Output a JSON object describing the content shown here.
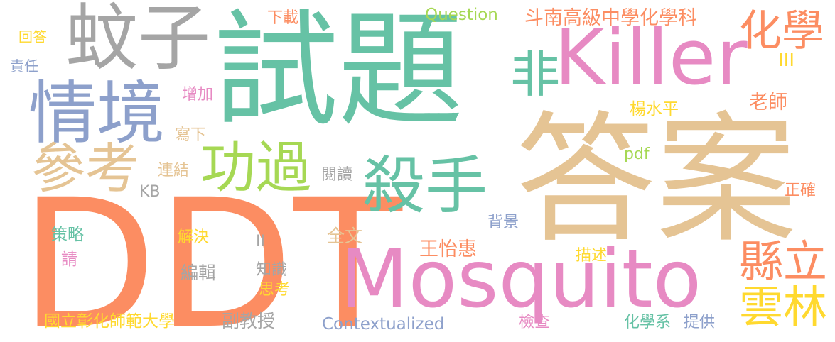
{
  "words": [
    {
      "text": "試題",
      "color": "#66c2a5"
    },
    {
      "text": "答案",
      "color": "#e5c494"
    },
    {
      "text": "DDT",
      "color": "#fc8d62"
    },
    {
      "text": "Mosquito",
      "color": "#e78ac3"
    },
    {
      "text": "Killer",
      "color": "#e78ac3"
    },
    {
      "text": "蚊子",
      "color": "#a5a5a5"
    },
    {
      "text": "情境",
      "color": "#8da0cb"
    },
    {
      "text": "殺手",
      "color": "#66c2a5"
    },
    {
      "text": "功過",
      "color": "#a6d854"
    },
    {
      "text": "參考",
      "color": "#e5c494"
    },
    {
      "text": "非",
      "color": "#66c2a5"
    },
    {
      "text": "化學",
      "color": "#fc8d62"
    },
    {
      "text": "縣立",
      "color": "#fc8d62"
    },
    {
      "text": "雲林",
      "color": "#ffd92f"
    },
    {
      "text": "斗南高級中學化學科",
      "color": "#fc8d62"
    },
    {
      "text": "Question",
      "color": "#a6d854"
    },
    {
      "text": "下載",
      "color": "#fc8d62"
    },
    {
      "text": "回答",
      "color": "#ffd92f"
    },
    {
      "text": "責任",
      "color": "#8da0cb"
    },
    {
      "text": "增加",
      "color": "#e78ac3"
    },
    {
      "text": "寫下",
      "color": "#e5c494"
    },
    {
      "text": "連結",
      "color": "#e5c494"
    },
    {
      "text": "KB",
      "color": "#a5a5a5"
    },
    {
      "text": "閱讀",
      "color": "#a5a5a5"
    },
    {
      "text": "pdf",
      "color": "#a6d854"
    },
    {
      "text": "楊水平",
      "color": "#ffd92f"
    },
    {
      "text": "老師",
      "color": "#fc8d62"
    },
    {
      "text": "III",
      "color": "#ffd92f"
    },
    {
      "text": "正確",
      "color": "#fc8d62"
    },
    {
      "text": "背景",
      "color": "#8da0cb"
    },
    {
      "text": "全文",
      "color": "#e5c494"
    },
    {
      "text": "王怡惠",
      "color": "#fc8d62"
    },
    {
      "text": "策略",
      "color": "#66c2a5"
    },
    {
      "text": "請",
      "color": "#e78ac3"
    },
    {
      "text": "解決",
      "color": "#ffd92f"
    },
    {
      "text": "編輯",
      "color": "#a5a5a5"
    },
    {
      "text": "II",
      "color": "#a5a5a5"
    },
    {
      "text": "知識",
      "color": "#a5a5a5"
    },
    {
      "text": "思考",
      "color": "#ffd92f"
    },
    {
      "text": "描述",
      "color": "#ffd92f"
    },
    {
      "text": "國立彰化師範大學",
      "color": "#ffd92f"
    },
    {
      "text": "副教授",
      "color": "#a5a5a5"
    },
    {
      "text": "Contextualized",
      "color": "#8da0cb"
    },
    {
      "text": "檢查",
      "color": "#e78ac3"
    },
    {
      "text": "化學系",
      "color": "#66c2a5"
    },
    {
      "text": "提供",
      "color": "#8da0cb"
    }
  ]
}
